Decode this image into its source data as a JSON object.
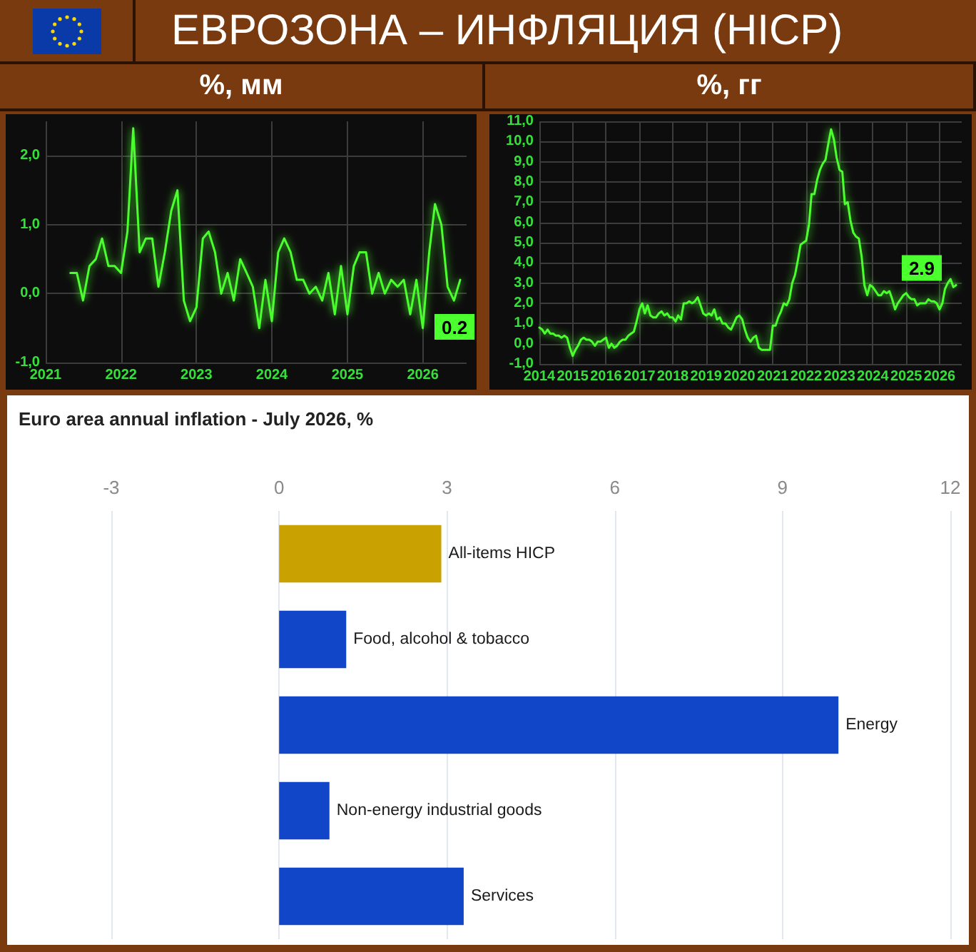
{
  "chart_data": [
    {
      "type": "other",
      "title": "ЕВРОЗОНА – ИНФЛЯЦИЯ (HICP)"
    },
    {
      "type": "line",
      "title": "%, мм",
      "x": [
        "2021-05",
        "2021-06",
        "2021-07",
        "2021-08",
        "2021-09",
        "2021-10",
        "2021-11",
        "2021-12",
        "2022-01",
        "2022-02",
        "2022-03",
        "2022-04",
        "2022-05",
        "2022-06",
        "2022-07",
        "2022-08",
        "2022-09",
        "2022-10",
        "2022-11",
        "2022-12",
        "2023-01",
        "2023-02",
        "2023-03",
        "2023-04",
        "2023-05",
        "2023-06",
        "2023-07",
        "2023-08",
        "2023-09",
        "2023-10",
        "2023-11",
        "2023-12",
        "2024-01",
        "2024-02",
        "2024-03",
        "2024-04",
        "2024-05",
        "2024-06",
        "2024-07",
        "2024-08",
        "2024-09",
        "2024-10",
        "2024-11",
        "2024-12",
        "2025-01",
        "2025-02",
        "2025-03",
        "2025-04",
        "2025-05",
        "2025-06",
        "2025-07",
        "2025-08",
        "2025-09",
        "2025-10",
        "2025-11",
        "2025-12",
        "2026-01",
        "2026-02",
        "2026-03",
        "2026-04",
        "2026-05",
        "2026-06",
        "2026-07"
      ],
      "values": [
        0.3,
        0.3,
        -0.1,
        0.4,
        0.5,
        0.8,
        0.4,
        0.4,
        0.3,
        0.9,
        2.4,
        0.6,
        0.8,
        0.8,
        0.1,
        0.6,
        1.2,
        1.5,
        -0.1,
        -0.4,
        -0.2,
        0.8,
        0.9,
        0.6,
        0.0,
        0.3,
        -0.1,
        0.5,
        0.3,
        0.1,
        -0.5,
        0.2,
        -0.4,
        0.6,
        0.8,
        0.6,
        0.2,
        0.2,
        0.0,
        0.1,
        -0.1,
        0.3,
        -0.3,
        0.4,
        -0.3,
        0.4,
        0.6,
        0.6,
        0.0,
        0.3,
        0.0,
        0.2,
        0.1,
        0.2,
        -0.3,
        0.2,
        -0.5,
        0.6,
        1.3,
        1.0,
        0.1,
        -0.1,
        0.2
      ],
      "value_labels": [
        null,
        null,
        null,
        null,
        null,
        null,
        null,
        null,
        null,
        null,
        null,
        null,
        null,
        null,
        null,
        null,
        null,
        null,
        null,
        null,
        null,
        null,
        null,
        null,
        null,
        null,
        null,
        null,
        null,
        null,
        null,
        null,
        null,
        null,
        null,
        null,
        null,
        null,
        null,
        null,
        null,
        null,
        null,
        null,
        null,
        null,
        null,
        null,
        null,
        null,
        null,
        null,
        null,
        null,
        null,
        null,
        null,
        null,
        null,
        null,
        null,
        null,
        "0.2"
      ],
      "color": "#4cff2e",
      "xlim": [
        "2021-01",
        "2026-08"
      ],
      "xticks": [
        "2021",
        "2022",
        "2023",
        "2024",
        "2025",
        "2026"
      ],
      "ylim": [
        -1,
        2.5
      ],
      "yticks": [
        {
          "value": -1,
          "label": "-1,0"
        },
        {
          "value": 0,
          "label": "0,0"
        },
        {
          "value": 1,
          "label": "1,0"
        },
        {
          "value": 2,
          "label": "2,0"
        }
      ],
      "grid": true,
      "marker": "none"
    },
    {
      "type": "line",
      "title": "%, гг",
      "x": [
        "2014-01",
        "2014-02",
        "2014-03",
        "2014-04",
        "2014-05",
        "2014-06",
        "2014-07",
        "2014-08",
        "2014-09",
        "2014-10",
        "2014-11",
        "2014-12",
        "2015-01",
        "2015-02",
        "2015-03",
        "2015-04",
        "2015-05",
        "2015-06",
        "2015-07",
        "2015-08",
        "2015-09",
        "2015-10",
        "2015-11",
        "2015-12",
        "2016-01",
        "2016-02",
        "2016-03",
        "2016-04",
        "2016-05",
        "2016-06",
        "2016-07",
        "2016-08",
        "2016-09",
        "2016-10",
        "2016-11",
        "2016-12",
        "2017-01",
        "2017-02",
        "2017-03",
        "2017-04",
        "2017-05",
        "2017-06",
        "2017-07",
        "2017-08",
        "2017-09",
        "2017-10",
        "2017-11",
        "2017-12",
        "2018-01",
        "2018-02",
        "2018-03",
        "2018-04",
        "2018-05",
        "2018-06",
        "2018-07",
        "2018-08",
        "2018-09",
        "2018-10",
        "2018-11",
        "2018-12",
        "2019-01",
        "2019-02",
        "2019-03",
        "2019-04",
        "2019-05",
        "2019-06",
        "2019-07",
        "2019-08",
        "2019-09",
        "2019-10",
        "2019-11",
        "2019-12",
        "2020-01",
        "2020-02",
        "2020-03",
        "2020-04",
        "2020-05",
        "2020-06",
        "2020-07",
        "2020-08",
        "2020-09",
        "2020-10",
        "2020-11",
        "2020-12",
        "2021-01",
        "2021-02",
        "2021-03",
        "2021-04",
        "2021-05",
        "2021-06",
        "2021-07",
        "2021-08",
        "2021-09",
        "2021-10",
        "2021-11",
        "2021-12",
        "2022-01",
        "2022-02",
        "2022-03",
        "2022-04",
        "2022-05",
        "2022-06",
        "2022-07",
        "2022-08",
        "2022-09",
        "2022-10",
        "2022-11",
        "2022-12",
        "2023-01",
        "2023-02",
        "2023-03",
        "2023-04",
        "2023-05",
        "2023-06",
        "2023-07",
        "2023-08",
        "2023-09",
        "2023-10",
        "2023-11",
        "2023-12",
        "2024-01",
        "2024-02",
        "2024-03",
        "2024-04",
        "2024-05",
        "2024-06",
        "2024-07",
        "2024-08",
        "2024-09",
        "2024-10",
        "2024-11",
        "2024-12",
        "2025-01",
        "2025-02",
        "2025-03",
        "2025-04",
        "2025-05",
        "2025-06",
        "2025-07",
        "2025-08",
        "2025-09",
        "2025-10",
        "2025-11",
        "2025-12",
        "2026-01",
        "2026-02",
        "2026-03",
        "2026-04",
        "2026-05",
        "2026-06",
        "2026-07"
      ],
      "values": [
        0.8,
        0.7,
        0.5,
        0.7,
        0.5,
        0.5,
        0.4,
        0.4,
        0.3,
        0.4,
        0.3,
        -0.2,
        -0.6,
        -0.3,
        -0.1,
        0.2,
        0.3,
        0.2,
        0.2,
        0.1,
        -0.1,
        0.1,
        0.1,
        0.2,
        0.3,
        -0.2,
        0.0,
        -0.2,
        -0.1,
        0.1,
        0.2,
        0.2,
        0.4,
        0.5,
        0.6,
        1.1,
        1.7,
        2.0,
        1.5,
        1.9,
        1.4,
        1.3,
        1.3,
        1.5,
        1.6,
        1.4,
        1.5,
        1.3,
        1.3,
        1.1,
        1.4,
        1.2,
        2.0,
        2.0,
        2.1,
        2.0,
        2.1,
        2.3,
        1.9,
        1.5,
        1.4,
        1.5,
        1.4,
        1.7,
        1.2,
        1.3,
        1.0,
        1.0,
        0.8,
        0.7,
        1.0,
        1.3,
        1.4,
        1.2,
        0.7,
        0.3,
        0.1,
        0.3,
        0.4,
        -0.2,
        -0.3,
        -0.3,
        -0.3,
        -0.3,
        0.9,
        0.9,
        1.3,
        1.6,
        2.0,
        1.9,
        2.2,
        3.0,
        3.4,
        4.1,
        4.9,
        5.0,
        5.1,
        5.9,
        7.4,
        7.4,
        8.1,
        8.6,
        8.9,
        9.1,
        9.9,
        10.6,
        10.1,
        9.2,
        8.6,
        8.5,
        6.9,
        7.0,
        6.1,
        5.5,
        5.3,
        5.2,
        4.3,
        2.9,
        2.4,
        2.9,
        2.8,
        2.6,
        2.4,
        2.4,
        2.6,
        2.5,
        2.6,
        2.2,
        1.7,
        2.0,
        2.2,
        2.4,
        2.5,
        2.3,
        2.2,
        2.2,
        1.9,
        2.0,
        2.0,
        2.0,
        2.2,
        2.1,
        2.1,
        2.0,
        1.7,
        2.0,
        2.7,
        3.0,
        3.2,
        2.8,
        2.9
      ],
      "value_labels": [
        null,
        null,
        null,
        null,
        null,
        null,
        null,
        null,
        null,
        null,
        null,
        null,
        null,
        null,
        null,
        null,
        null,
        null,
        null,
        null,
        null,
        null,
        null,
        null,
        null,
        null,
        null,
        null,
        null,
        null,
        null,
        null,
        null,
        null,
        null,
        null,
        null,
        null,
        null,
        null,
        null,
        null,
        null,
        null,
        null,
        null,
        null,
        null,
        null,
        null,
        null,
        null,
        null,
        null,
        null,
        null,
        null,
        null,
        null,
        null,
        null,
        null,
        null,
        null,
        null,
        null,
        null,
        null,
        null,
        null,
        null,
        null,
        null,
        null,
        null,
        null,
        null,
        null,
        null,
        null,
        null,
        null,
        null,
        null,
        null,
        null,
        null,
        null,
        null,
        null,
        null,
        null,
        null,
        null,
        null,
        null,
        null,
        null,
        null,
        null,
        null,
        null,
        null,
        null,
        null,
        null,
        null,
        null,
        null,
        null,
        null,
        null,
        null,
        null,
        null,
        null,
        null,
        null,
        null,
        null,
        null,
        null,
        null,
        null,
        null,
        null,
        null,
        null,
        null,
        null,
        null,
        null,
        null,
        null,
        null,
        null,
        null,
        null,
        null,
        null,
        null,
        null,
        null,
        null,
        null,
        null,
        null,
        null,
        null,
        null,
        "2.9"
      ],
      "color": "#4cff2e",
      "xlim": [
        "2014-01",
        "2026-09"
      ],
      "xticks": [
        "2014",
        "2015",
        "2016",
        "2017",
        "2018",
        "2019",
        "2020",
        "2021",
        "2022",
        "2023",
        "2024",
        "2025",
        "2026"
      ],
      "ylim": [
        -1,
        11
      ],
      "yticks": [
        {
          "value": -1,
          "label": "-1,0"
        },
        {
          "value": 0,
          "label": "0,0"
        },
        {
          "value": 1,
          "label": "1,0"
        },
        {
          "value": 2,
          "label": "2,0"
        },
        {
          "value": 3,
          "label": "3,0"
        },
        {
          "value": 4,
          "label": "4,0"
        },
        {
          "value": 5,
          "label": "5,0"
        },
        {
          "value": 6,
          "label": "6,0"
        },
        {
          "value": 7,
          "label": "7,0"
        },
        {
          "value": 8,
          "label": "8,0"
        },
        {
          "value": 9,
          "label": "9,0"
        },
        {
          "value": 10,
          "label": "10,0"
        },
        {
          "value": 11,
          "label": "11,0"
        }
      ],
      "grid": true,
      "marker": "none"
    },
    {
      "type": "bar",
      "orientation": "horizontal",
      "title": "Euro area annual inflation - July 2026, %",
      "categories": [
        "All-items HICP",
        "Food, alcohol & tobacco",
        "Energy",
        "Non-energy industrial goods",
        "Services"
      ],
      "values": [
        2.9,
        1.2,
        10.0,
        0.9,
        3.3
      ],
      "colors": [
        "#c9a100",
        "#1146c8",
        "#1146c8",
        "#1146c8",
        "#1146c8"
      ],
      "xlim": [
        -3,
        12
      ],
      "xticks": [
        -3,
        0,
        3,
        6,
        9,
        12
      ],
      "grid": "x"
    }
  ]
}
